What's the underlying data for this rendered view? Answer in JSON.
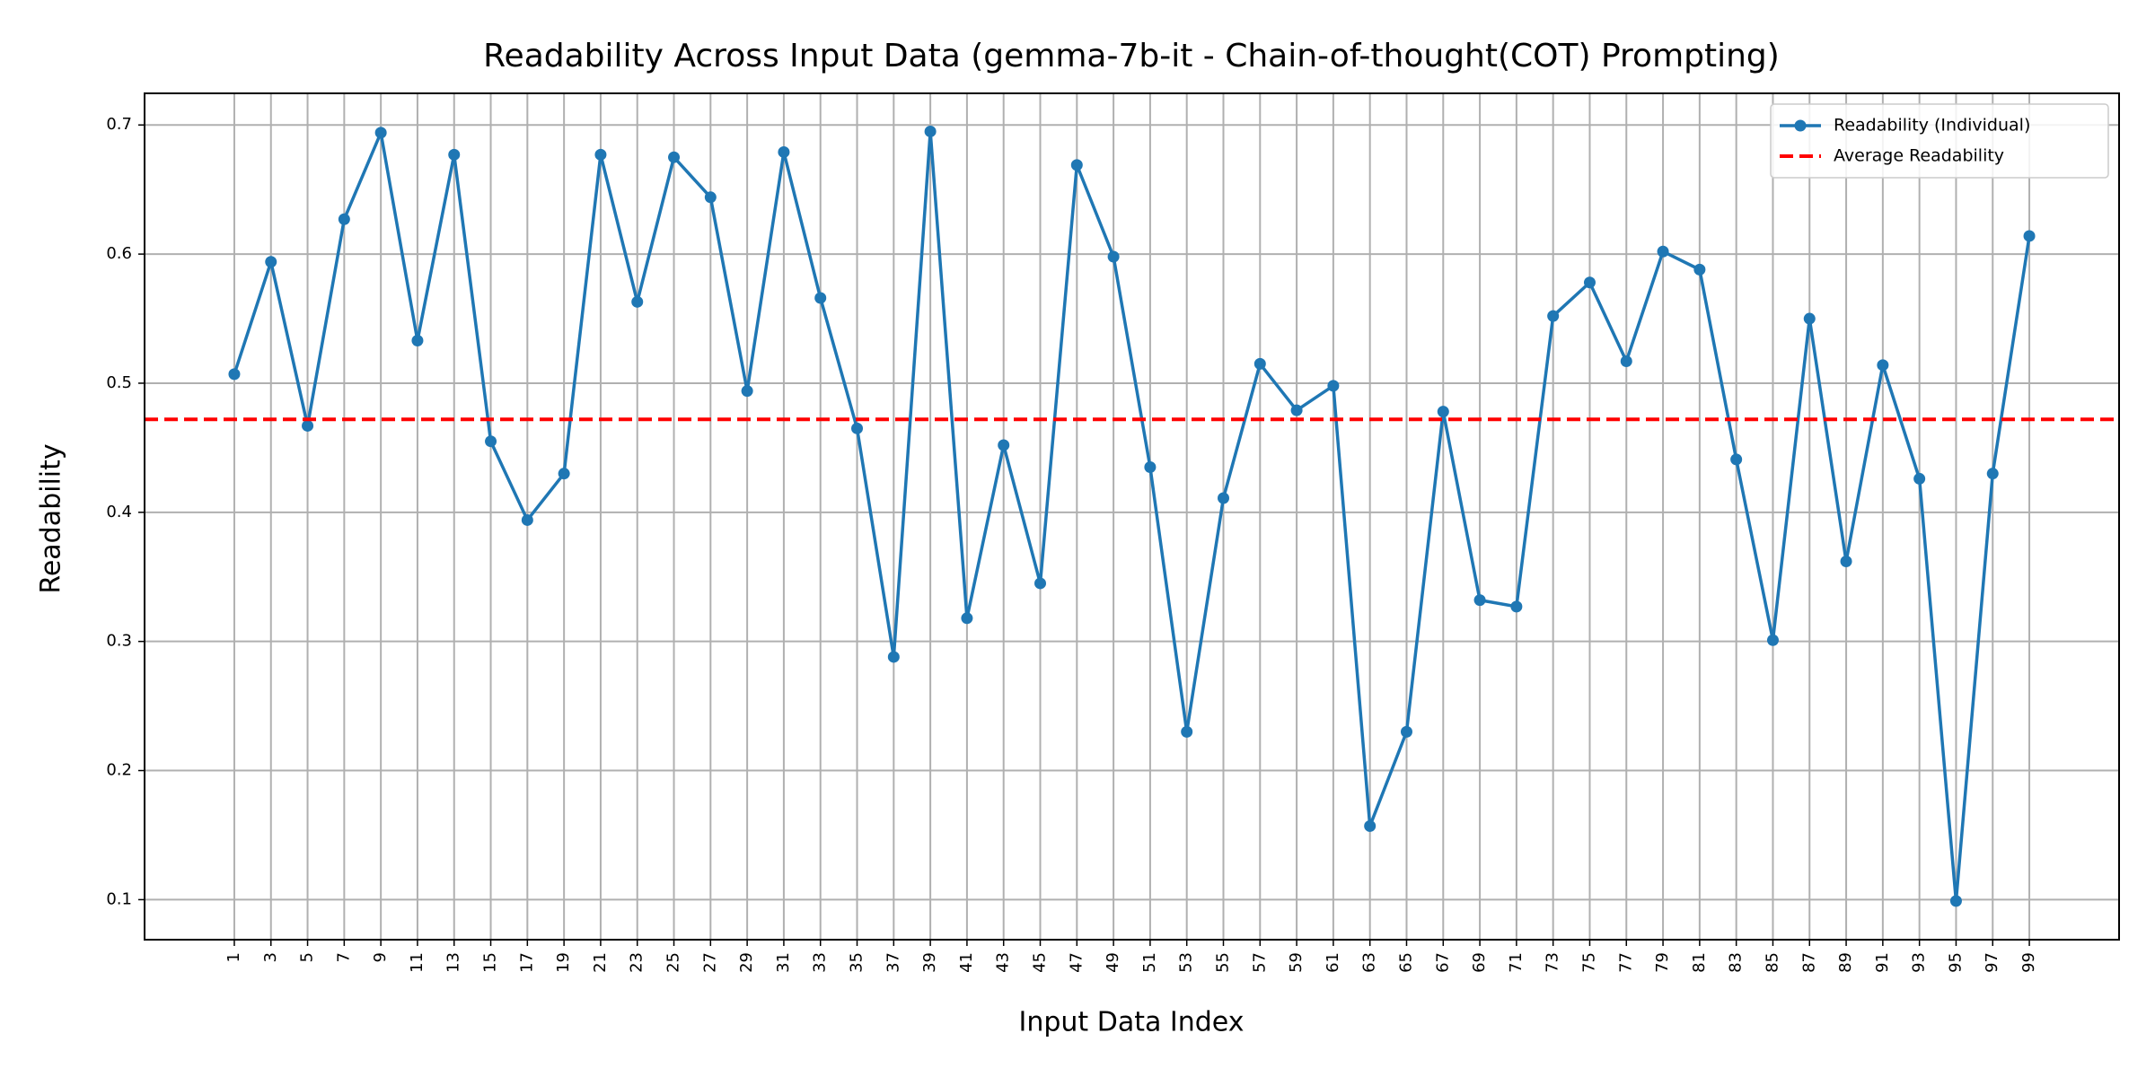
{
  "chart_data": {
    "type": "line",
    "title": "Readability Across Input Data (gemma-7b-it - Chain-of-thought(COT) Prompting)",
    "xlabel": "Input Data Index",
    "ylabel": "Readability",
    "x": [
      1,
      3,
      5,
      7,
      9,
      11,
      13,
      15,
      17,
      19,
      21,
      23,
      25,
      27,
      29,
      31,
      33,
      35,
      37,
      39,
      41,
      43,
      45,
      47,
      49,
      51,
      53,
      55,
      57,
      59,
      61,
      63,
      65,
      67,
      69,
      71,
      73,
      75,
      77,
      79,
      81,
      83,
      85,
      87,
      89,
      91,
      93,
      95,
      97,
      99
    ],
    "series": [
      {
        "name": "Readability (Individual)",
        "color": "#1f77b4",
        "values": [
          0.507,
          0.594,
          0.467,
          0.627,
          0.694,
          0.533,
          0.677,
          0.455,
          0.394,
          0.43,
          0.677,
          0.563,
          0.675,
          0.644,
          0.494,
          0.679,
          0.566,
          0.465,
          0.288,
          0.695,
          0.318,
          0.452,
          0.345,
          0.669,
          0.598,
          0.435,
          0.23,
          0.411,
          0.515,
          0.479,
          0.498,
          0.157,
          0.23,
          0.478,
          0.332,
          0.327,
          0.552,
          0.578,
          0.517,
          0.602,
          0.588,
          0.441,
          0.301,
          0.55,
          0.362,
          0.514,
          0.426,
          0.099,
          0.43,
          0.614
        ]
      }
    ],
    "average": {
      "name": "Average Readability",
      "color": "#ff0000",
      "value": 0.472
    },
    "xlim": [
      -3.9,
      103.9
    ],
    "xticks": [
      1,
      3,
      5,
      7,
      9,
      11,
      13,
      15,
      17,
      19,
      21,
      23,
      25,
      27,
      29,
      31,
      33,
      35,
      37,
      39,
      41,
      43,
      45,
      47,
      49,
      51,
      53,
      55,
      57,
      59,
      61,
      63,
      65,
      67,
      69,
      71,
      73,
      75,
      77,
      79,
      81,
      83,
      85,
      87,
      89,
      91,
      93,
      95,
      97,
      99
    ],
    "ylim": [
      0.069,
      0.7245
    ],
    "yticks": [
      0.1,
      0.2,
      0.3,
      0.4,
      0.5,
      0.6,
      0.7
    ],
    "grid": true,
    "legend": "upper right"
  }
}
